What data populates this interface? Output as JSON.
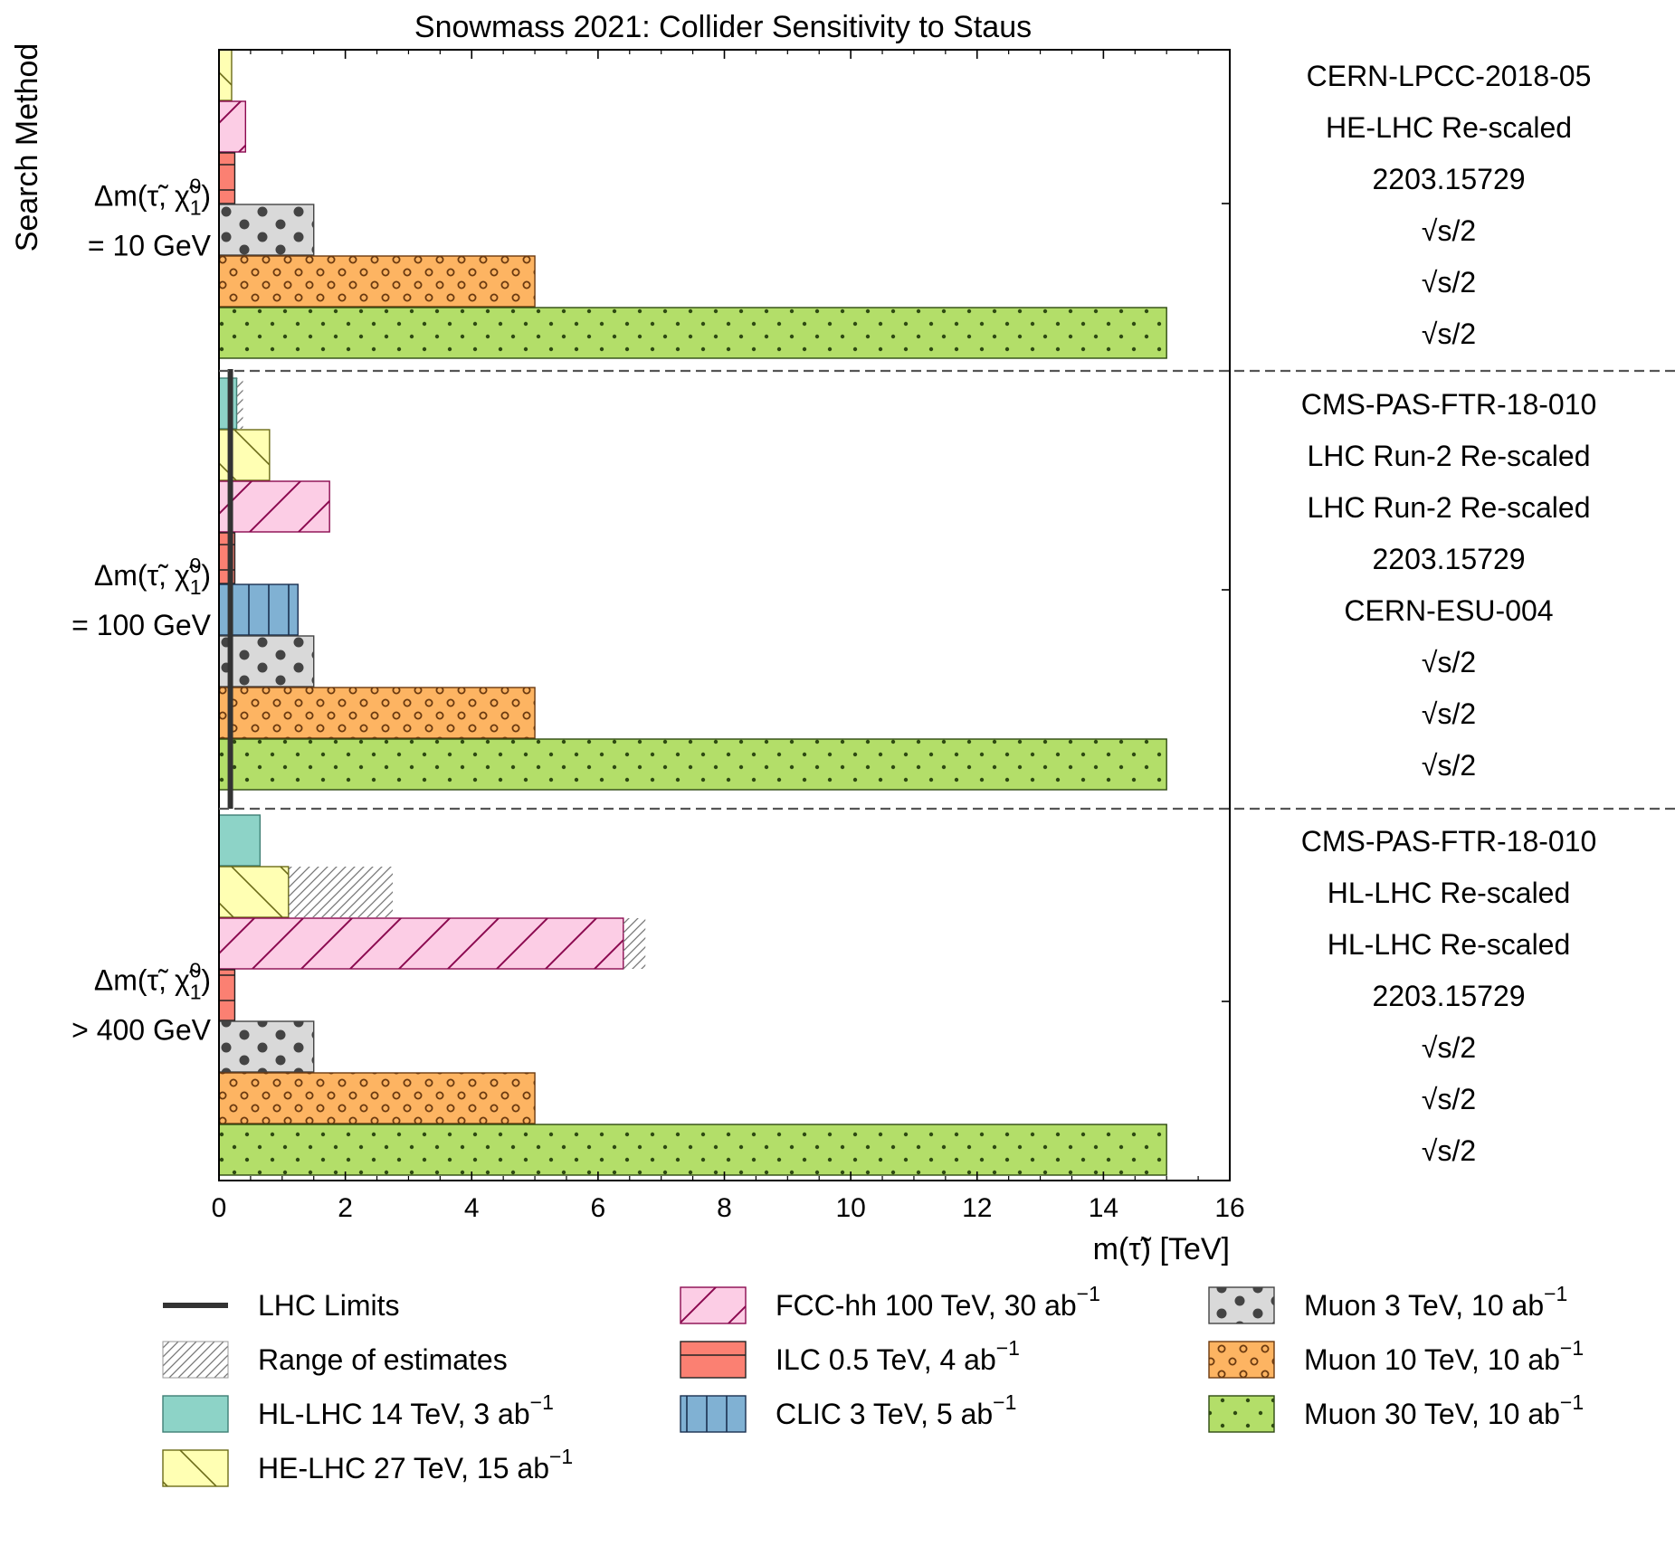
{
  "chart_data": {
    "type": "bar",
    "orientation": "horizontal",
    "title": "Snowmass 2021: Collider Sensitivity to Staus",
    "xlabel": "m(τ̃) [TeV]",
    "ylabel": "Search Method",
    "xlim": [
      0,
      16
    ],
    "xticks": [
      "0",
      "2",
      "4",
      "6",
      "8",
      "10",
      "12",
      "14",
      "16"
    ],
    "lhc_limit": 0.18,
    "colliders": [
      {
        "key": "hl",
        "name": "HL-LHC 14 TeV, 3 ab",
        "sup": "−1",
        "color": "#8dd3c7",
        "stroke": "#3f7f75",
        "hatch": "none"
      },
      {
        "key": "he",
        "name": "HE-LHC 27 TeV, 15 ab",
        "sup": "−1",
        "color": "#ffffb3",
        "stroke": "#6b6b18",
        "hatch": "backslash"
      },
      {
        "key": "fcc",
        "name": "FCC-hh 100 TeV, 30 ab",
        "sup": "−1",
        "color": "#fccde5",
        "stroke": "#8b0a50",
        "hatch": "slash"
      },
      {
        "key": "ilc",
        "name": "ILC 0.5 TeV, 4 ab",
        "sup": "−1",
        "color": "#fb8072",
        "stroke": "#222222",
        "hatch": "horizontal"
      },
      {
        "key": "clic",
        "name": "CLIC 3 TeV, 5 ab",
        "sup": "−1",
        "color": "#80b1d3",
        "stroke": "#1a3050",
        "hatch": "vertical"
      },
      {
        "key": "mu3",
        "name": "Muon 3 TeV, 10 ab",
        "sup": "−1",
        "color": "#d9d9d9",
        "stroke": "#444444",
        "hatch": "bigdots"
      },
      {
        "key": "mu10",
        "name": "Muon 10 TeV, 10 ab",
        "sup": "−1",
        "color": "#fdb462",
        "stroke": "#6b3a10",
        "hatch": "rings"
      },
      {
        "key": "mu30",
        "name": "Muon 30 TeV, 10 ab",
        "sup": "−1",
        "color": "#b3de69",
        "stroke": "#2e4a12",
        "hatch": "smalldots"
      }
    ],
    "groups": [
      {
        "label_line1": "Δm(τ̃, χ̃",
        "label_sub": "1",
        "label_sup": "0",
        "label_close": ")",
        "label_line2": "= 10 GeV",
        "bars": [
          {
            "collider": "he",
            "value": 0.2,
            "range_max": null,
            "ref": "CERN-LPCC-2018-05"
          },
          {
            "collider": "fcc",
            "value": 0.42,
            "range_max": null,
            "ref": "HE-LHC Re-scaled"
          },
          {
            "collider": "ilc",
            "value": 0.25,
            "range_max": null,
            "ref": "2203.15729"
          },
          {
            "collider": "mu3",
            "value": 1.5,
            "range_max": null,
            "ref": "√s/2"
          },
          {
            "collider": "mu10",
            "value": 5.0,
            "range_max": null,
            "ref": "√s/2"
          },
          {
            "collider": "mu30",
            "value": 15.0,
            "range_max": null,
            "ref": "√s/2"
          }
        ]
      },
      {
        "label_line1": "Δm(τ̃, χ̃",
        "label_sub": "1",
        "label_sup": "0",
        "label_close": ")",
        "label_line2": "= 100 GeV",
        "bars": [
          {
            "collider": "hl",
            "value": 0.28,
            "range_max": 0.38,
            "ref": "CMS-PAS-FTR-18-010"
          },
          {
            "collider": "he",
            "value": 0.8,
            "range_max": null,
            "ref": "LHC Run-2 Re-scaled"
          },
          {
            "collider": "fcc",
            "value": 1.75,
            "range_max": null,
            "ref": "LHC Run-2 Re-scaled"
          },
          {
            "collider": "ilc",
            "value": 0.25,
            "range_max": null,
            "ref": "2203.15729"
          },
          {
            "collider": "clic",
            "value": 1.25,
            "range_max": null,
            "ref": "CERN-ESU-004"
          },
          {
            "collider": "mu3",
            "value": 1.5,
            "range_max": null,
            "ref": "√s/2"
          },
          {
            "collider": "mu10",
            "value": 5.0,
            "range_max": null,
            "ref": "√s/2"
          },
          {
            "collider": "mu30",
            "value": 15.0,
            "range_max": null,
            "ref": "√s/2"
          }
        ]
      },
      {
        "label_line1": "Δm(τ̃, χ̃",
        "label_sub": "1",
        "label_sup": "0",
        "label_close": ")",
        "label_line2": "> 400 GeV",
        "bars": [
          {
            "collider": "hl",
            "value": 0.65,
            "range_max": null,
            "ref": "CMS-PAS-FTR-18-010"
          },
          {
            "collider": "he",
            "value": 1.1,
            "range_max": 2.75,
            "ref": "HL-LHC Re-scaled"
          },
          {
            "collider": "fcc",
            "value": 6.4,
            "range_max": 6.75,
            "ref": "HL-LHC Re-scaled"
          },
          {
            "collider": "ilc",
            "value": 0.25,
            "range_max": null,
            "ref": "2203.15729"
          },
          {
            "collider": "mu3",
            "value": 1.5,
            "range_max": null,
            "ref": "√s/2"
          },
          {
            "collider": "mu10",
            "value": 5.0,
            "range_max": null,
            "ref": "√s/2"
          },
          {
            "collider": "mu30",
            "value": 15.0,
            "range_max": null,
            "ref": "√s/2"
          }
        ]
      }
    ],
    "legend": {
      "placement": "bottom",
      "lhc_limits": "LHC Limits",
      "range_of_estimates": "Range of estimates"
    }
  }
}
